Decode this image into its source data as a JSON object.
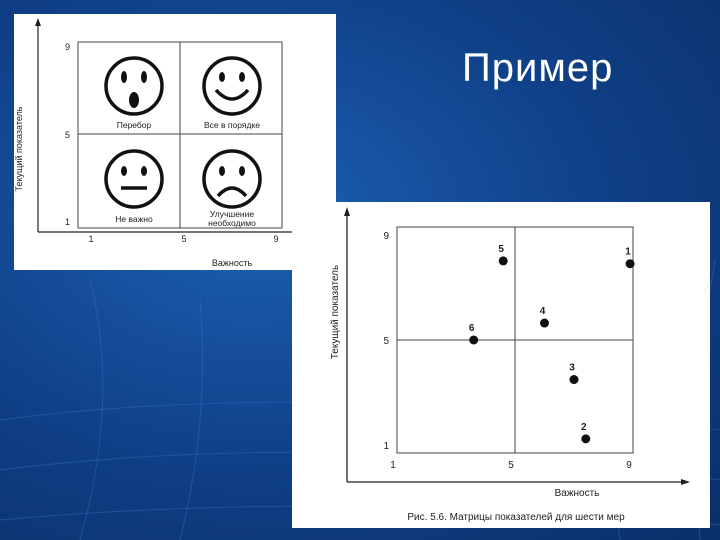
{
  "slide": {
    "title": "Пример",
    "colors": {
      "background": "#0f3f86",
      "accent": "#ffffff"
    }
  },
  "matrix_a": {
    "y_axis_label": "Текущий показатель",
    "x_axis_label": "Важность",
    "y_ticks": [
      "9",
      "5",
      "1"
    ],
    "x_ticks": [
      "1",
      "5",
      "9"
    ],
    "quadrants": {
      "top_left": {
        "label": "Перебор",
        "icon": "surprised-face-icon"
      },
      "top_right": {
        "label": "Все в порядке",
        "icon": "smiling-face-icon"
      },
      "bottom_left": {
        "label": "Не важно",
        "icon": "neutral-face-icon"
      },
      "bottom_right": {
        "label_line1": "Улучшение",
        "label_line2": "необходимо",
        "icon": "sad-face-icon"
      }
    }
  },
  "chart_data": {
    "type": "scatter",
    "xlabel": "Важность",
    "ylabel": "Текущий показатель",
    "caption": "Рис. 5.6. Матрицы показателей для шести мер",
    "xlim": [
      1,
      9
    ],
    "ylim": [
      1,
      9
    ],
    "x_ticks": [
      1,
      5,
      9
    ],
    "y_ticks": [
      1,
      5,
      9
    ],
    "divider_x": 5,
    "divider_y": 5,
    "points": [
      {
        "label": "1",
        "x": 8.9,
        "y": 7.7
      },
      {
        "label": "2",
        "x": 7.4,
        "y": 1.5
      },
      {
        "label": "3",
        "x": 7.0,
        "y": 3.6
      },
      {
        "label": "4",
        "x": 6.0,
        "y": 5.6
      },
      {
        "label": "5",
        "x": 4.6,
        "y": 7.8
      },
      {
        "label": "6",
        "x": 3.6,
        "y": 5.0
      }
    ]
  }
}
